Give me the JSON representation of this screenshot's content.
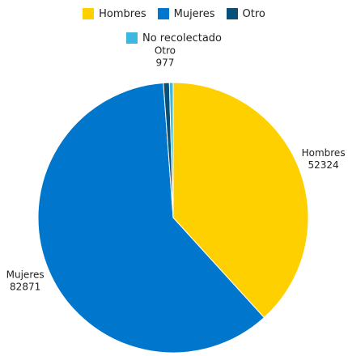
{
  "chart_data": {
    "type": "pie",
    "categories": [
      "Hombres",
      "Mujeres",
      "Otro",
      "No recolectado"
    ],
    "values": [
      52324,
      82871,
      977,
      614
    ],
    "colors": [
      "#ffd000",
      "#0077cc",
      "#0a4f77",
      "#3bb7e0"
    ],
    "legend": {
      "rows": [
        [
          {
            "label": "Hombres",
            "color": "#ffd000"
          },
          {
            "label": "Mujeres",
            "color": "#0077cc"
          },
          {
            "label": "Otro",
            "color": "#0a4f77"
          }
        ],
        [
          {
            "label": "No recolectado",
            "color": "#3bb7e0"
          }
        ]
      ],
      "placement": "top"
    },
    "data_labels": [
      {
        "category": "Hombres",
        "name": "Hombres",
        "value": "52324"
      },
      {
        "category": "Mujeres",
        "name": "Mujeres",
        "value": "82871"
      },
      {
        "category": "Otro",
        "name": "Otro",
        "value": "977"
      }
    ]
  }
}
